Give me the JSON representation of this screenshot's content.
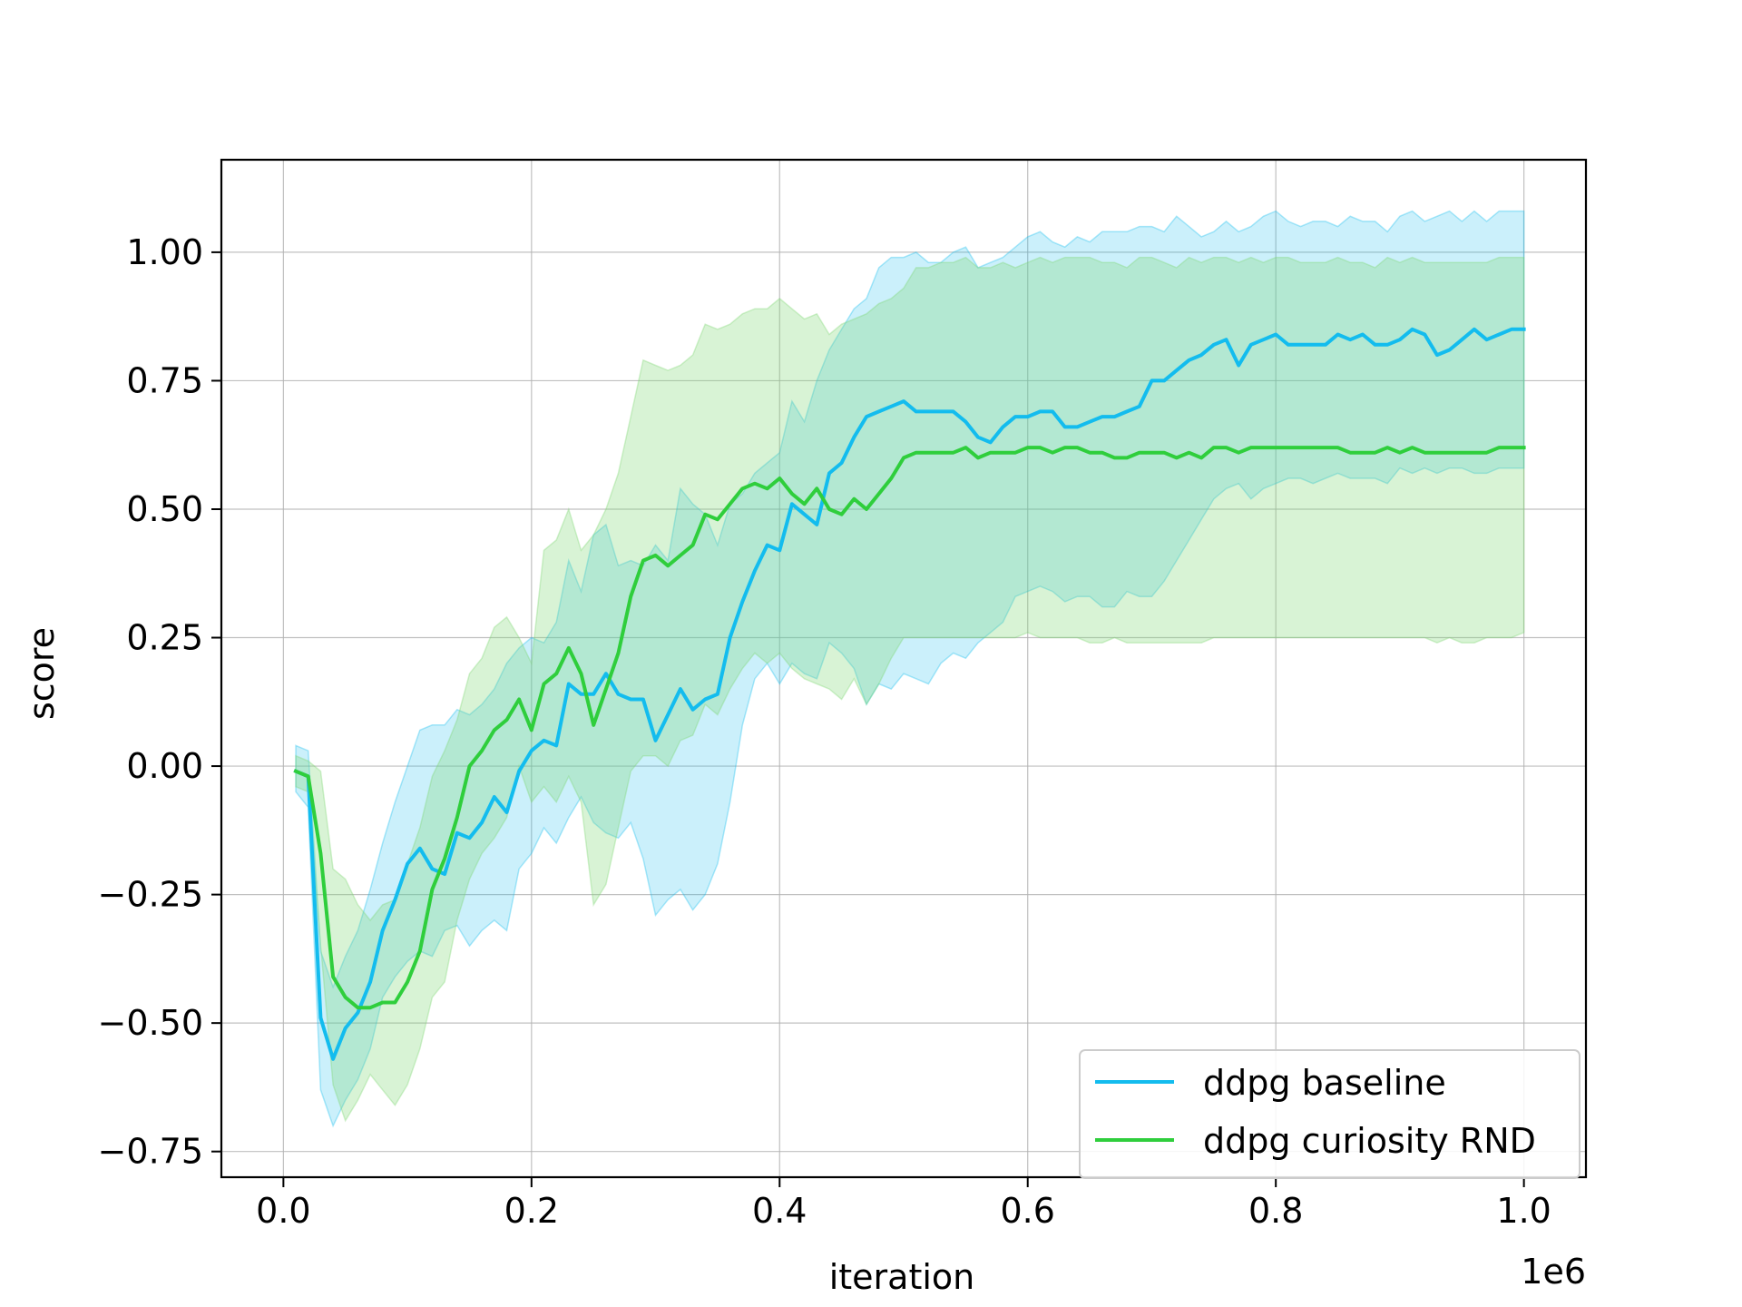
{
  "chart_data": {
    "type": "line",
    "xlabel": "iteration",
    "ylabel": "score",
    "x_offset_label": "1e6",
    "xlim": [
      -0.05,
      1.05
    ],
    "ylim": [
      -0.8,
      1.18
    ],
    "xticks": [
      0.0,
      0.2,
      0.4,
      0.6,
      0.8,
      1.0
    ],
    "xtick_labels": [
      "0.0",
      "0.2",
      "0.4",
      "0.6",
      "0.8",
      "1.0"
    ],
    "yticks": [
      -0.75,
      -0.5,
      -0.25,
      0.0,
      0.25,
      0.5,
      0.75,
      1.0
    ],
    "ytick_labels": [
      "−0.75",
      "−0.50",
      "−0.25",
      "0.00",
      "0.25",
      "0.50",
      "0.75",
      "1.00"
    ],
    "grid": true,
    "legend_position": "lower-right",
    "series": [
      {
        "name": "ddpg baseline",
        "color": "#13bcee",
        "band_color": "#13bcee",
        "x": [
          0.01,
          0.02,
          0.03,
          0.04,
          0.05,
          0.06,
          0.07,
          0.08,
          0.09,
          0.1,
          0.11,
          0.12,
          0.13,
          0.14,
          0.15,
          0.16,
          0.17,
          0.18,
          0.19,
          0.2,
          0.21,
          0.22,
          0.23,
          0.24,
          0.25,
          0.26,
          0.27,
          0.28,
          0.29,
          0.3,
          0.31,
          0.32,
          0.33,
          0.34,
          0.35,
          0.36,
          0.37,
          0.38,
          0.39,
          0.4,
          0.41,
          0.42,
          0.43,
          0.44,
          0.45,
          0.46,
          0.47,
          0.48,
          0.49,
          0.5,
          0.51,
          0.52,
          0.53,
          0.54,
          0.55,
          0.56,
          0.57,
          0.58,
          0.59,
          0.6,
          0.61,
          0.62,
          0.63,
          0.64,
          0.65,
          0.66,
          0.67,
          0.68,
          0.69,
          0.7,
          0.71,
          0.72,
          0.73,
          0.74,
          0.75,
          0.76,
          0.77,
          0.78,
          0.79,
          0.8,
          0.81,
          0.82,
          0.83,
          0.84,
          0.85,
          0.86,
          0.87,
          0.88,
          0.89,
          0.9,
          0.91,
          0.92,
          0.93,
          0.94,
          0.95,
          0.96,
          0.97,
          0.98,
          0.99,
          1.0
        ],
        "y": [
          -0.01,
          -0.02,
          -0.49,
          -0.57,
          -0.51,
          -0.48,
          -0.42,
          -0.32,
          -0.26,
          -0.19,
          -0.16,
          -0.2,
          -0.21,
          -0.13,
          -0.14,
          -0.11,
          -0.06,
          -0.09,
          -0.01,
          0.03,
          0.05,
          0.04,
          0.16,
          0.14,
          0.14,
          0.18,
          0.14,
          0.13,
          0.13,
          0.05,
          0.1,
          0.15,
          0.11,
          0.13,
          0.14,
          0.25,
          0.32,
          0.38,
          0.43,
          0.42,
          0.51,
          0.49,
          0.47,
          0.57,
          0.59,
          0.64,
          0.68,
          0.69,
          0.7,
          0.71,
          0.69,
          0.69,
          0.69,
          0.69,
          0.67,
          0.64,
          0.63,
          0.66,
          0.68,
          0.68,
          0.69,
          0.69,
          0.66,
          0.66,
          0.67,
          0.68,
          0.68,
          0.69,
          0.7,
          0.75,
          0.75,
          0.77,
          0.79,
          0.8,
          0.82,
          0.83,
          0.78,
          0.82,
          0.83,
          0.84,
          0.82,
          0.82,
          0.82,
          0.82,
          0.84,
          0.83,
          0.84,
          0.82,
          0.82,
          0.83,
          0.85,
          0.84,
          0.8,
          0.81,
          0.83,
          0.85,
          0.83,
          0.84,
          0.85,
          0.85
        ],
        "y_upper": [
          0.04,
          0.03,
          -0.36,
          -0.43,
          -0.37,
          -0.32,
          -0.24,
          -0.15,
          -0.07,
          0.0,
          0.07,
          0.08,
          0.08,
          0.11,
          0.1,
          0.12,
          0.15,
          0.2,
          0.23,
          0.25,
          0.24,
          0.28,
          0.4,
          0.34,
          0.45,
          0.47,
          0.39,
          0.4,
          0.39,
          0.43,
          0.4,
          0.54,
          0.51,
          0.49,
          0.43,
          0.51,
          0.53,
          0.57,
          0.59,
          0.61,
          0.71,
          0.67,
          0.75,
          0.81,
          0.85,
          0.89,
          0.91,
          0.97,
          0.99,
          0.99,
          1.0,
          0.98,
          0.98,
          1.0,
          1.01,
          0.97,
          0.98,
          0.99,
          1.01,
          1.03,
          1.04,
          1.02,
          1.01,
          1.03,
          1.02,
          1.04,
          1.04,
          1.04,
          1.05,
          1.05,
          1.04,
          1.07,
          1.05,
          1.03,
          1.04,
          1.06,
          1.04,
          1.05,
          1.07,
          1.08,
          1.06,
          1.05,
          1.06,
          1.06,
          1.05,
          1.07,
          1.06,
          1.06,
          1.04,
          1.07,
          1.08,
          1.06,
          1.07,
          1.08,
          1.06,
          1.08,
          1.06,
          1.08,
          1.08,
          1.08
        ],
        "y_lower": [
          -0.05,
          -0.08,
          -0.63,
          -0.7,
          -0.65,
          -0.61,
          -0.55,
          -0.45,
          -0.41,
          -0.38,
          -0.36,
          -0.37,
          -0.32,
          -0.31,
          -0.35,
          -0.32,
          -0.3,
          -0.32,
          -0.2,
          -0.17,
          -0.12,
          -0.15,
          -0.1,
          -0.06,
          -0.11,
          -0.13,
          -0.14,
          -0.11,
          -0.18,
          -0.29,
          -0.26,
          -0.24,
          -0.28,
          -0.25,
          -0.19,
          -0.07,
          0.08,
          0.17,
          0.2,
          0.16,
          0.2,
          0.18,
          0.17,
          0.24,
          0.22,
          0.19,
          0.12,
          0.16,
          0.15,
          0.18,
          0.17,
          0.16,
          0.2,
          0.22,
          0.21,
          0.24,
          0.26,
          0.28,
          0.33,
          0.34,
          0.35,
          0.34,
          0.32,
          0.33,
          0.33,
          0.31,
          0.31,
          0.34,
          0.33,
          0.33,
          0.36,
          0.4,
          0.44,
          0.48,
          0.52,
          0.54,
          0.55,
          0.52,
          0.54,
          0.55,
          0.56,
          0.56,
          0.55,
          0.56,
          0.57,
          0.56,
          0.56,
          0.56,
          0.55,
          0.58,
          0.57,
          0.58,
          0.57,
          0.58,
          0.58,
          0.57,
          0.57,
          0.58,
          0.58,
          0.58
        ]
      },
      {
        "name": "ddpg curiosity RND",
        "color": "#2fce3c",
        "band_color": "#7dd873",
        "x": [
          0.01,
          0.02,
          0.03,
          0.04,
          0.05,
          0.06,
          0.07,
          0.08,
          0.09,
          0.1,
          0.11,
          0.12,
          0.13,
          0.14,
          0.15,
          0.16,
          0.17,
          0.18,
          0.19,
          0.2,
          0.21,
          0.22,
          0.23,
          0.24,
          0.25,
          0.26,
          0.27,
          0.28,
          0.29,
          0.3,
          0.31,
          0.32,
          0.33,
          0.34,
          0.35,
          0.36,
          0.37,
          0.38,
          0.39,
          0.4,
          0.41,
          0.42,
          0.43,
          0.44,
          0.45,
          0.46,
          0.47,
          0.48,
          0.49,
          0.5,
          0.51,
          0.52,
          0.53,
          0.54,
          0.55,
          0.56,
          0.57,
          0.58,
          0.59,
          0.6,
          0.61,
          0.62,
          0.63,
          0.64,
          0.65,
          0.66,
          0.67,
          0.68,
          0.69,
          0.7,
          0.71,
          0.72,
          0.73,
          0.74,
          0.75,
          0.76,
          0.77,
          0.78,
          0.79,
          0.8,
          0.81,
          0.82,
          0.83,
          0.84,
          0.85,
          0.86,
          0.87,
          0.88,
          0.89,
          0.9,
          0.91,
          0.92,
          0.93,
          0.94,
          0.95,
          0.96,
          0.97,
          0.98,
          0.99,
          1.0
        ],
        "y": [
          -0.01,
          -0.02,
          -0.17,
          -0.41,
          -0.45,
          -0.47,
          -0.47,
          -0.46,
          -0.46,
          -0.42,
          -0.36,
          -0.24,
          -0.18,
          -0.1,
          0.0,
          0.03,
          0.07,
          0.09,
          0.13,
          0.07,
          0.16,
          0.18,
          0.23,
          0.18,
          0.08,
          0.15,
          0.22,
          0.33,
          0.4,
          0.41,
          0.39,
          0.41,
          0.43,
          0.49,
          0.48,
          0.51,
          0.54,
          0.55,
          0.54,
          0.56,
          0.53,
          0.51,
          0.54,
          0.5,
          0.49,
          0.52,
          0.5,
          0.53,
          0.56,
          0.6,
          0.61,
          0.61,
          0.61,
          0.61,
          0.62,
          0.6,
          0.61,
          0.61,
          0.61,
          0.62,
          0.62,
          0.61,
          0.62,
          0.62,
          0.61,
          0.61,
          0.6,
          0.6,
          0.61,
          0.61,
          0.61,
          0.6,
          0.61,
          0.6,
          0.62,
          0.62,
          0.61,
          0.62,
          0.62,
          0.62,
          0.62,
          0.62,
          0.62,
          0.62,
          0.62,
          0.61,
          0.61,
          0.61,
          0.62,
          0.61,
          0.62,
          0.61,
          0.61,
          0.61,
          0.61,
          0.61,
          0.61,
          0.62,
          0.62,
          0.62
        ],
        "y_upper": [
          0.02,
          0.01,
          -0.01,
          -0.2,
          -0.22,
          -0.27,
          -0.3,
          -0.27,
          -0.26,
          -0.19,
          -0.12,
          -0.02,
          0.03,
          0.09,
          0.18,
          0.21,
          0.27,
          0.29,
          0.25,
          0.2,
          0.42,
          0.44,
          0.5,
          0.42,
          0.45,
          0.5,
          0.57,
          0.68,
          0.79,
          0.78,
          0.77,
          0.78,
          0.8,
          0.86,
          0.85,
          0.86,
          0.88,
          0.89,
          0.89,
          0.91,
          0.89,
          0.87,
          0.88,
          0.84,
          0.86,
          0.87,
          0.88,
          0.9,
          0.91,
          0.93,
          0.97,
          0.97,
          0.98,
          0.98,
          0.99,
          0.97,
          0.97,
          0.98,
          0.97,
          0.98,
          0.99,
          0.98,
          0.99,
          0.99,
          0.99,
          0.98,
          0.98,
          0.97,
          0.99,
          0.99,
          0.98,
          0.97,
          0.99,
          0.98,
          0.99,
          0.99,
          0.98,
          0.99,
          0.98,
          0.99,
          0.99,
          0.98,
          0.98,
          0.98,
          0.99,
          0.98,
          0.98,
          0.97,
          0.99,
          0.98,
          0.99,
          0.98,
          0.98,
          0.98,
          0.98,
          0.98,
          0.98,
          0.99,
          0.99,
          0.99
        ],
        "y_lower": [
          -0.04,
          -0.05,
          -0.35,
          -0.62,
          -0.69,
          -0.65,
          -0.6,
          -0.63,
          -0.66,
          -0.62,
          -0.55,
          -0.45,
          -0.42,
          -0.3,
          -0.22,
          -0.17,
          -0.14,
          -0.1,
          0.0,
          -0.07,
          -0.04,
          -0.07,
          -0.02,
          -0.07,
          -0.27,
          -0.23,
          -0.12,
          -0.01,
          0.02,
          0.02,
          0.0,
          0.05,
          0.06,
          0.12,
          0.1,
          0.15,
          0.19,
          0.22,
          0.2,
          0.22,
          0.19,
          0.17,
          0.16,
          0.15,
          0.13,
          0.17,
          0.12,
          0.16,
          0.21,
          0.25,
          0.25,
          0.25,
          0.25,
          0.25,
          0.25,
          0.25,
          0.25,
          0.25,
          0.25,
          0.26,
          0.25,
          0.25,
          0.25,
          0.25,
          0.24,
          0.24,
          0.25,
          0.24,
          0.24,
          0.24,
          0.24,
          0.24,
          0.24,
          0.24,
          0.25,
          0.25,
          0.25,
          0.25,
          0.25,
          0.25,
          0.25,
          0.25,
          0.25,
          0.25,
          0.25,
          0.25,
          0.25,
          0.25,
          0.25,
          0.25,
          0.25,
          0.25,
          0.24,
          0.25,
          0.24,
          0.24,
          0.25,
          0.25,
          0.25,
          0.26
        ]
      }
    ]
  }
}
